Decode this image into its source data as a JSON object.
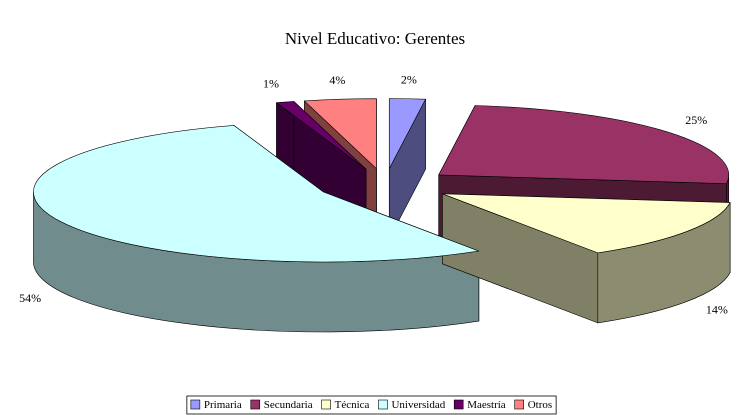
{
  "chart_data": {
    "type": "pie3d",
    "title": "Nivel Educativo: Gerentes",
    "categories": [
      "Primaria",
      "Secundaria",
      "Técnica",
      "Universidad",
      "Maestría",
      "Otros"
    ],
    "values": [
      2,
      25,
      14,
      54,
      1,
      4
    ],
    "value_labels": [
      "2%",
      "25%",
      "14%",
      "54%",
      "1%",
      "4%"
    ],
    "colors": [
      "#9999ff",
      "#993366",
      "#ffffcc",
      "#ccffff",
      "#660066",
      "#ff8080"
    ],
    "legend": "bottom"
  }
}
